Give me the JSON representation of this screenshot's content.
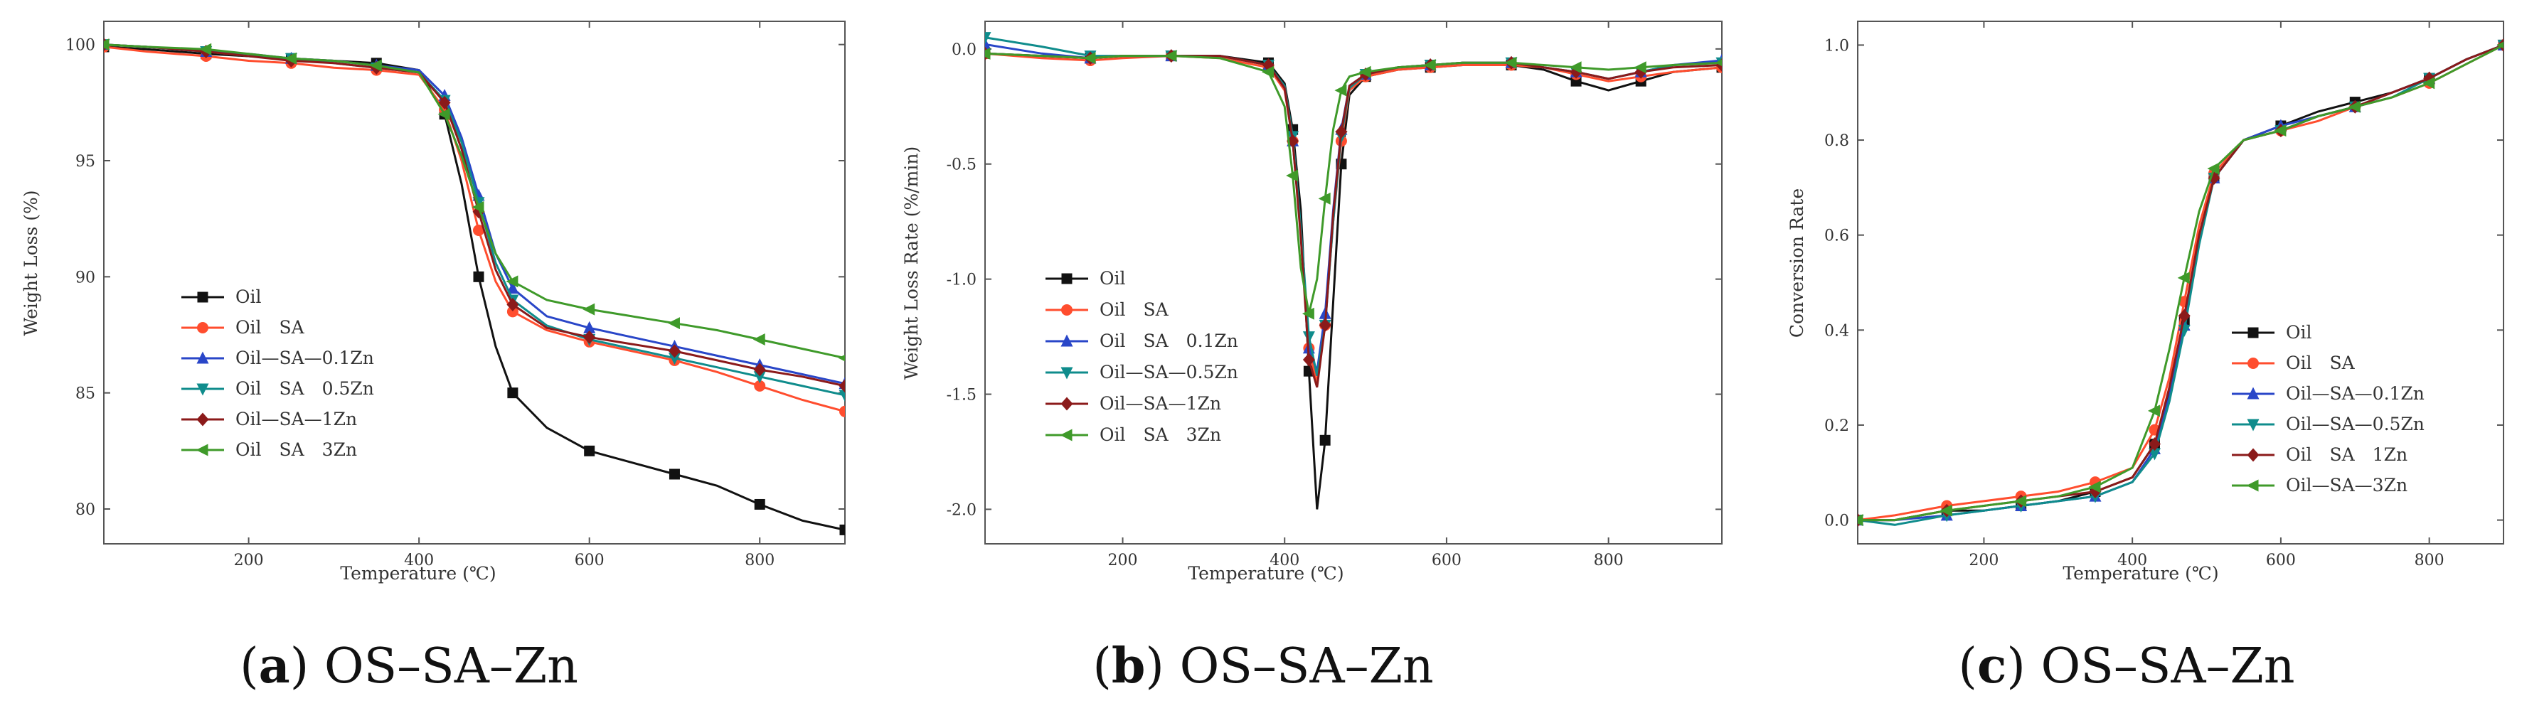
{
  "chart_data": [
    {
      "type": "line",
      "panel": "a",
      "caption_letter": "a",
      "caption_text": " OS–SA–Zn",
      "xlabel": "Temperature (℃)",
      "ylabel": "Weight Loss (%)",
      "xlim": [
        30,
        900
      ],
      "ylim": [
        78.5,
        101
      ],
      "x_ticks": [
        200,
        400,
        600,
        800
      ],
      "y_ticks": [
        80,
        85,
        90,
        95,
        100
      ],
      "grid": false,
      "legend_position": "left-middle",
      "series": [
        {
          "name": "Oil",
          "color": "#111111",
          "marker": "square",
          "x": [
            30,
            80,
            150,
            200,
            250,
            300,
            350,
            400,
            430,
            450,
            470,
            490,
            510,
            550,
            600,
            650,
            700,
            750,
            800,
            850,
            900
          ],
          "y": [
            99.9,
            99.8,
            99.6,
            99.5,
            99.4,
            99.3,
            99.2,
            98.9,
            97.0,
            94.0,
            90.0,
            87.0,
            85.0,
            83.5,
            82.5,
            82.0,
            81.5,
            81.0,
            80.2,
            79.5,
            79.1
          ]
        },
        {
          "name": "Oil SA",
          "color": "#ff4d2e",
          "marker": "circle",
          "x": [
            30,
            80,
            150,
            200,
            250,
            300,
            350,
            400,
            430,
            450,
            470,
            490,
            510,
            550,
            600,
            650,
            700,
            750,
            800,
            850,
            900
          ],
          "y": [
            99.9,
            99.7,
            99.5,
            99.3,
            99.2,
            99.0,
            98.9,
            98.7,
            97.2,
            95.0,
            92.0,
            89.8,
            88.5,
            87.7,
            87.2,
            86.8,
            86.4,
            85.9,
            85.3,
            84.7,
            84.2
          ]
        },
        {
          "name": "Oil—SA—0.1Zn",
          "color": "#2946c8",
          "marker": "triangle-up",
          "x": [
            30,
            80,
            150,
            200,
            250,
            300,
            350,
            400,
            430,
            450,
            470,
            490,
            510,
            550,
            600,
            650,
            700,
            750,
            800,
            850,
            900
          ],
          "y": [
            100.0,
            99.9,
            99.7,
            99.6,
            99.4,
            99.3,
            99.1,
            98.9,
            97.8,
            96.0,
            93.5,
            91.0,
            89.5,
            88.3,
            87.8,
            87.4,
            87.0,
            86.6,
            86.2,
            85.8,
            85.4
          ]
        },
        {
          "name": "Oil SA 0.5Zn",
          "color": "#0f8c8c",
          "marker": "triangle-down",
          "x": [
            30,
            80,
            150,
            200,
            250,
            300,
            350,
            400,
            430,
            450,
            470,
            490,
            510,
            550,
            600,
            650,
            700,
            750,
            800,
            850,
            900
          ],
          "y": [
            100.0,
            99.9,
            99.7,
            99.5,
            99.4,
            99.2,
            99.0,
            98.8,
            97.6,
            95.8,
            93.2,
            90.6,
            89.0,
            87.9,
            87.3,
            86.9,
            86.5,
            86.1,
            85.7,
            85.3,
            84.9
          ]
        },
        {
          "name": "Oil—SA—1Zn",
          "color": "#8b1a1a",
          "marker": "diamond",
          "x": [
            30,
            80,
            150,
            200,
            250,
            300,
            350,
            400,
            430,
            450,
            470,
            490,
            510,
            550,
            600,
            650,
            700,
            750,
            800,
            850,
            900
          ],
          "y": [
            100.0,
            99.9,
            99.7,
            99.5,
            99.3,
            99.2,
            99.0,
            98.8,
            97.5,
            95.5,
            92.8,
            90.3,
            88.8,
            87.8,
            87.4,
            87.1,
            86.8,
            86.4,
            86.0,
            85.7,
            85.3
          ]
        },
        {
          "name": "Oil SA 3Zn",
          "color": "#3f9a2a",
          "marker": "triangle-left",
          "x": [
            30,
            80,
            150,
            200,
            250,
            300,
            350,
            400,
            430,
            450,
            470,
            490,
            510,
            550,
            600,
            650,
            700,
            750,
            800,
            850,
            900
          ],
          "y": [
            100.0,
            99.9,
            99.8,
            99.6,
            99.4,
            99.3,
            99.1,
            98.8,
            97.0,
            95.2,
            93.0,
            91.0,
            89.8,
            89.0,
            88.6,
            88.3,
            88.0,
            87.7,
            87.3,
            86.9,
            86.5
          ]
        }
      ]
    },
    {
      "type": "line",
      "panel": "b",
      "caption_letter": "b",
      "caption_text": " OS–SA–Zn",
      "xlabel": "Temperature (℃)",
      "ylabel": "Weight Loss Rate (%/min)",
      "xlim": [
        30,
        940
      ],
      "ylim": [
        -2.15,
        0.12
      ],
      "x_ticks": [
        200,
        400,
        600,
        800
      ],
      "y_ticks": [
        0.0,
        -0.5,
        -1.0,
        -1.5,
        -2.0
      ],
      "y_tick_labels": [
        "0.0",
        "-0.5",
        "-1.0",
        "-1.5",
        "-2.0"
      ],
      "grid": false,
      "legend_position": "left-middle",
      "series": [
        {
          "name": "Oil",
          "color": "#111111",
          "marker": "square",
          "x": [
            30,
            100,
            160,
            200,
            260,
            320,
            380,
            400,
            410,
            420,
            430,
            440,
            450,
            460,
            470,
            480,
            500,
            540,
            580,
            620,
            680,
            720,
            760,
            800,
            840,
            880,
            940
          ],
          "y": [
            -0.02,
            -0.03,
            -0.04,
            -0.03,
            -0.03,
            -0.03,
            -0.06,
            -0.15,
            -0.35,
            -0.7,
            -1.4,
            -2.0,
            -1.7,
            -1.1,
            -0.5,
            -0.2,
            -0.12,
            -0.09,
            -0.08,
            -0.07,
            -0.07,
            -0.09,
            -0.14,
            -0.18,
            -0.14,
            -0.1,
            -0.08
          ]
        },
        {
          "name": "Oil SA",
          "color": "#ff4d2e",
          "marker": "circle",
          "x": [
            30,
            100,
            160,
            200,
            260,
            320,
            380,
            400,
            410,
            420,
            430,
            440,
            450,
            460,
            470,
            480,
            500,
            540,
            580,
            620,
            680,
            720,
            760,
            800,
            840,
            880,
            940
          ],
          "y": [
            -0.02,
            -0.04,
            -0.05,
            -0.04,
            -0.03,
            -0.04,
            -0.08,
            -0.18,
            -0.4,
            -0.8,
            -1.3,
            -1.45,
            -1.2,
            -0.75,
            -0.4,
            -0.18,
            -0.12,
            -0.09,
            -0.08,
            -0.07,
            -0.07,
            -0.08,
            -0.11,
            -0.14,
            -0.12,
            -0.1,
            -0.08
          ]
        },
        {
          "name": "Oil SA 0.1Zn",
          "color": "#2946c8",
          "marker": "triangle-up",
          "x": [
            30,
            100,
            160,
            200,
            260,
            320,
            380,
            400,
            410,
            420,
            430,
            440,
            450,
            460,
            470,
            480,
            500,
            540,
            580,
            620,
            680,
            720,
            760,
            800,
            840,
            880,
            940
          ],
          "y": [
            0.02,
            -0.02,
            -0.04,
            -0.03,
            -0.03,
            -0.03,
            -0.07,
            -0.17,
            -0.4,
            -0.8,
            -1.3,
            -1.4,
            -1.15,
            -0.7,
            -0.35,
            -0.16,
            -0.11,
            -0.08,
            -0.07,
            -0.06,
            -0.06,
            -0.08,
            -0.1,
            -0.13,
            -0.1,
            -0.07,
            -0.05
          ]
        },
        {
          "name": "Oil—SA—0.5Zn",
          "color": "#0f8c8c",
          "marker": "triangle-down",
          "x": [
            30,
            100,
            160,
            200,
            260,
            320,
            380,
            400,
            410,
            420,
            430,
            440,
            450,
            460,
            470,
            480,
            500,
            540,
            580,
            620,
            680,
            720,
            760,
            800,
            840,
            880,
            940
          ],
          "y": [
            0.05,
            0.01,
            -0.03,
            -0.03,
            -0.03,
            -0.03,
            -0.07,
            -0.16,
            -0.38,
            -0.78,
            -1.25,
            -1.42,
            -1.2,
            -0.75,
            -0.38,
            -0.17,
            -0.11,
            -0.08,
            -0.07,
            -0.06,
            -0.06,
            -0.08,
            -0.1,
            -0.13,
            -0.1,
            -0.07,
            -0.06
          ]
        },
        {
          "name": "Oil—SA—1Zn",
          "color": "#8b1a1a",
          "marker": "diamond",
          "x": [
            30,
            100,
            160,
            200,
            260,
            320,
            380,
            400,
            410,
            420,
            430,
            440,
            450,
            460,
            470,
            480,
            500,
            540,
            580,
            620,
            680,
            720,
            760,
            800,
            840,
            880,
            940
          ],
          "y": [
            -0.02,
            -0.03,
            -0.04,
            -0.03,
            -0.03,
            -0.03,
            -0.07,
            -0.17,
            -0.4,
            -0.82,
            -1.35,
            -1.47,
            -1.2,
            -0.72,
            -0.36,
            -0.16,
            -0.11,
            -0.08,
            -0.07,
            -0.06,
            -0.06,
            -0.08,
            -0.1,
            -0.13,
            -0.1,
            -0.08,
            -0.07
          ]
        },
        {
          "name": "Oil SA 3Zn",
          "color": "#3f9a2a",
          "marker": "triangle-left",
          "x": [
            30,
            100,
            160,
            200,
            260,
            320,
            380,
            400,
            410,
            420,
            430,
            440,
            450,
            460,
            470,
            480,
            500,
            540,
            580,
            620,
            680,
            720,
            760,
            800,
            840,
            880,
            940
          ],
          "y": [
            -0.02,
            -0.03,
            -0.04,
            -0.03,
            -0.03,
            -0.04,
            -0.1,
            -0.25,
            -0.55,
            -0.95,
            -1.15,
            -1.0,
            -0.65,
            -0.35,
            -0.18,
            -0.12,
            -0.1,
            -0.08,
            -0.07,
            -0.06,
            -0.06,
            -0.07,
            -0.08,
            -0.09,
            -0.08,
            -0.07,
            -0.06
          ]
        }
      ]
    },
    {
      "type": "line",
      "panel": "c",
      "caption_letter": "c",
      "caption_text": " OS–SA–Zn",
      "xlabel": "Temperature (℃)",
      "ylabel": "Conversion Rate",
      "xlim": [
        30,
        900
      ],
      "ylim": [
        -0.05,
        1.05
      ],
      "x_ticks": [
        200,
        400,
        600,
        800
      ],
      "y_ticks": [
        0.0,
        0.2,
        0.4,
        0.6,
        0.8,
        1.0
      ],
      "y_tick_labels": [
        "0.0",
        "0.2",
        "0.4",
        "0.6",
        "0.8",
        "1.0"
      ],
      "grid": false,
      "legend_position": "right-middle",
      "series": [
        {
          "name": "Oil",
          "color": "#111111",
          "marker": "square",
          "x": [
            30,
            80,
            150,
            200,
            250,
            300,
            350,
            400,
            430,
            450,
            470,
            490,
            510,
            550,
            600,
            650,
            700,
            750,
            800,
            850,
            900
          ],
          "y": [
            0.0,
            0.0,
            0.02,
            0.02,
            0.03,
            0.04,
            0.06,
            0.09,
            0.16,
            0.27,
            0.42,
            0.6,
            0.72,
            0.8,
            0.83,
            0.86,
            0.88,
            0.9,
            0.93,
            0.97,
            1.0
          ]
        },
        {
          "name": "Oil SA",
          "color": "#ff4d2e",
          "marker": "circle",
          "x": [
            30,
            80,
            150,
            200,
            250,
            300,
            350,
            400,
            430,
            450,
            470,
            490,
            510,
            550,
            600,
            650,
            700,
            750,
            800,
            850,
            900
          ],
          "y": [
            0.0,
            0.01,
            0.03,
            0.04,
            0.05,
            0.06,
            0.08,
            0.11,
            0.19,
            0.3,
            0.46,
            0.62,
            0.73,
            0.8,
            0.82,
            0.84,
            0.87,
            0.89,
            0.92,
            0.96,
            1.0
          ]
        },
        {
          "name": "Oil—SA—0.1Zn",
          "color": "#2946c8",
          "marker": "triangle-up",
          "x": [
            30,
            80,
            150,
            200,
            250,
            300,
            350,
            400,
            430,
            450,
            470,
            490,
            510,
            550,
            600,
            650,
            700,
            750,
            800,
            850,
            900
          ],
          "y": [
            0.0,
            0.0,
            0.01,
            0.02,
            0.03,
            0.04,
            0.05,
            0.08,
            0.15,
            0.26,
            0.41,
            0.59,
            0.72,
            0.8,
            0.83,
            0.85,
            0.87,
            0.9,
            0.93,
            0.97,
            1.0
          ]
        },
        {
          "name": "Oil—SA—0.5Zn",
          "color": "#0f8c8c",
          "marker": "triangle-down",
          "x": [
            30,
            80,
            150,
            200,
            250,
            300,
            350,
            400,
            430,
            450,
            470,
            490,
            510,
            550,
            600,
            650,
            700,
            750,
            800,
            850,
            900
          ],
          "y": [
            0.0,
            -0.01,
            0.01,
            0.02,
            0.03,
            0.04,
            0.05,
            0.08,
            0.14,
            0.25,
            0.4,
            0.58,
            0.72,
            0.8,
            0.82,
            0.85,
            0.87,
            0.89,
            0.93,
            0.97,
            1.0
          ]
        },
        {
          "name": "Oil SA 1Zn",
          "color": "#8b1a1a",
          "marker": "diamond",
          "x": [
            30,
            80,
            150,
            200,
            250,
            300,
            350,
            400,
            430,
            450,
            470,
            490,
            510,
            550,
            600,
            650,
            700,
            750,
            800,
            850,
            900
          ],
          "y": [
            0.0,
            0.0,
            0.02,
            0.03,
            0.04,
            0.05,
            0.06,
            0.09,
            0.16,
            0.28,
            0.43,
            0.6,
            0.72,
            0.8,
            0.82,
            0.85,
            0.87,
            0.9,
            0.93,
            0.97,
            1.0
          ]
        },
        {
          "name": "Oil—SA—3Zn",
          "color": "#3f9a2a",
          "marker": "triangle-left",
          "x": [
            30,
            80,
            150,
            200,
            250,
            300,
            350,
            400,
            430,
            450,
            470,
            490,
            510,
            550,
            600,
            650,
            700,
            750,
            800,
            850,
            900
          ],
          "y": [
            0.0,
            0.0,
            0.02,
            0.03,
            0.04,
            0.05,
            0.07,
            0.11,
            0.23,
            0.36,
            0.51,
            0.65,
            0.74,
            0.8,
            0.82,
            0.85,
            0.87,
            0.89,
            0.92,
            0.96,
            1.0
          ]
        }
      ]
    }
  ]
}
